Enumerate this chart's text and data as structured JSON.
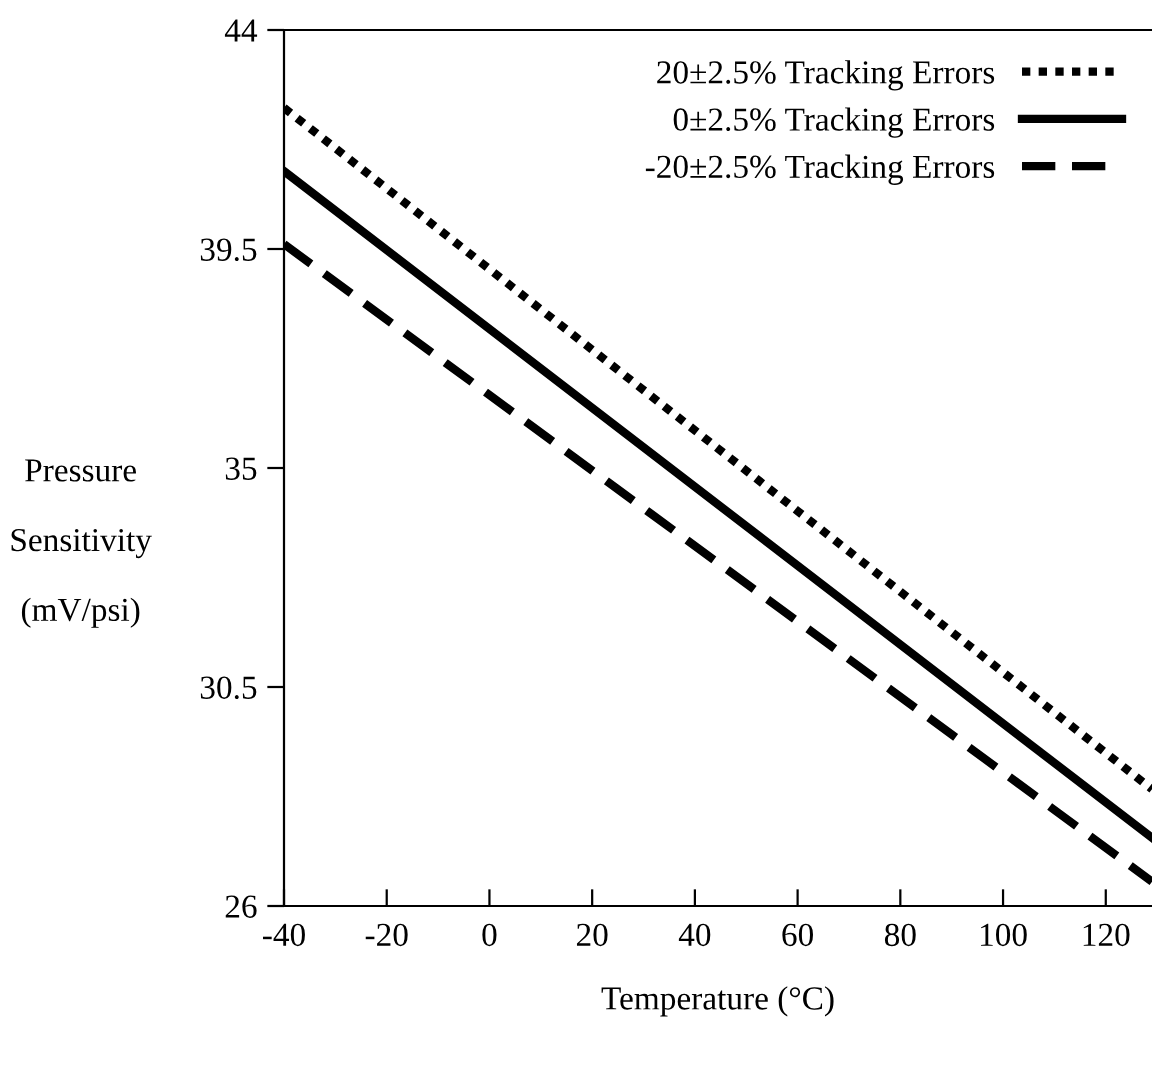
{
  "chart_data": {
    "type": "line",
    "xlabel": "Temperature (°C)",
    "ylabel": "Pressure\n\nSensitivity\n\n(mV/psi)",
    "x": [
      -40,
      129
    ],
    "series": [
      {
        "name": "20±2.5% Tracking Errors",
        "color": "#000000",
        "values": [
          42.4,
          28.4
        ],
        "line_style": "dotted"
      },
      {
        "name": "0±2.5% Tracking Errors",
        "color": "#000000",
        "values": [
          41.1,
          27.4
        ],
        "line_style": "solid"
      },
      {
        "name": "-20±2.5% Tracking Errors",
        "color": "#000000",
        "values": [
          39.6,
          26.5
        ],
        "line_style": "dashed"
      }
    ],
    "xlim": [
      -40,
      129
    ],
    "ylim": [
      26,
      44
    ],
    "xticks": [
      -40,
      -20,
      0,
      20,
      40,
      60,
      80,
      100,
      120
    ],
    "yticks": [
      26,
      30.5,
      35,
      39.5,
      44
    ],
    "grid": false,
    "legend": "top right",
    "marker": "none"
  }
}
